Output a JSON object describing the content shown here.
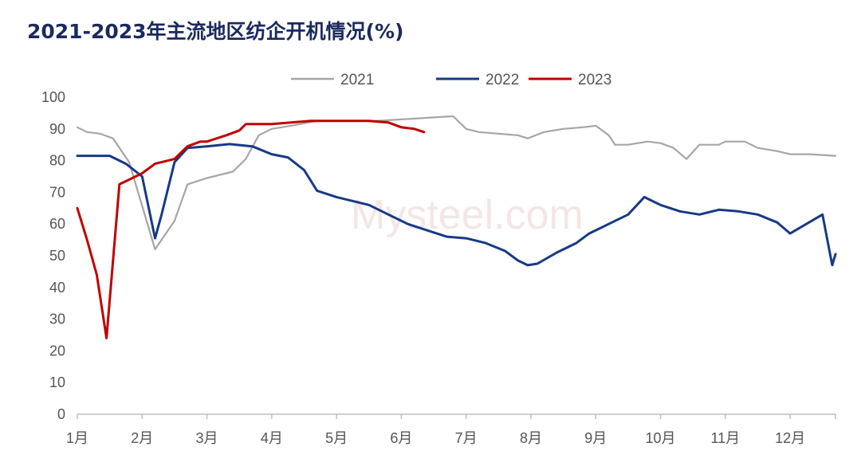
{
  "chart_data": {
    "type": "line",
    "title": "2021-2023年主流地区纺企开机情况(%)",
    "xlabel": "",
    "ylabel": "",
    "ylim": [
      0,
      100
    ],
    "yticks": [
      0,
      10,
      20,
      30,
      40,
      50,
      60,
      70,
      80,
      90,
      100
    ],
    "xlim": [
      1,
      12.7
    ],
    "month_labels": [
      "1月",
      "2月",
      "3月",
      "4月",
      "5月",
      "6月",
      "7月",
      "8月",
      "9月",
      "10月",
      "11月",
      "12月"
    ],
    "legend_position": "top-center",
    "watermark": "Mysteel.com",
    "series": [
      {
        "name": "2021",
        "color": "#a6a6a6",
        "points": [
          [
            1.0,
            90.5
          ],
          [
            1.15,
            89
          ],
          [
            1.35,
            88.5
          ],
          [
            1.55,
            87
          ],
          [
            1.8,
            79.5
          ],
          [
            2.2,
            52
          ],
          [
            2.5,
            61
          ],
          [
            2.7,
            72.5
          ],
          [
            3.0,
            74.5
          ],
          [
            3.4,
            76.5
          ],
          [
            3.6,
            80.5
          ],
          [
            3.8,
            88
          ],
          [
            4.0,
            90
          ],
          [
            4.3,
            91
          ],
          [
            4.7,
            92.5
          ],
          [
            5.2,
            92.5
          ],
          [
            5.6,
            92.5
          ],
          [
            6.0,
            93
          ],
          [
            6.4,
            93.5
          ],
          [
            6.8,
            94
          ],
          [
            7.0,
            90
          ],
          [
            7.2,
            89
          ],
          [
            7.5,
            88.5
          ],
          [
            7.8,
            88
          ],
          [
            7.95,
            87
          ],
          [
            8.2,
            89
          ],
          [
            8.5,
            90
          ],
          [
            8.8,
            90.5
          ],
          [
            9.0,
            91
          ],
          [
            9.2,
            88
          ],
          [
            9.3,
            85
          ],
          [
            9.5,
            85
          ],
          [
            9.8,
            86
          ],
          [
            10.0,
            85.5
          ],
          [
            10.2,
            84
          ],
          [
            10.4,
            80.5
          ],
          [
            10.6,
            85
          ],
          [
            10.9,
            85
          ],
          [
            11.0,
            86
          ],
          [
            11.3,
            86
          ],
          [
            11.5,
            84
          ],
          [
            11.8,
            83
          ],
          [
            12.0,
            82
          ],
          [
            12.3,
            82
          ],
          [
            12.7,
            81.5
          ]
        ]
      },
      {
        "name": "2022",
        "color": "#173a86",
        "points": [
          [
            1.0,
            81.5
          ],
          [
            1.5,
            81.5
          ],
          [
            1.75,
            79
          ],
          [
            2.0,
            75
          ],
          [
            2.2,
            55.5
          ],
          [
            2.3,
            63
          ],
          [
            2.5,
            79.5
          ],
          [
            2.7,
            84
          ],
          [
            3.0,
            84.5
          ],
          [
            3.35,
            85.2
          ],
          [
            3.7,
            84.5
          ],
          [
            4.0,
            82
          ],
          [
            4.25,
            81
          ],
          [
            4.5,
            77
          ],
          [
            4.7,
            70.5
          ],
          [
            5.0,
            68.5
          ],
          [
            5.5,
            66
          ],
          [
            5.8,
            63
          ],
          [
            6.1,
            60
          ],
          [
            6.4,
            58
          ],
          [
            6.7,
            56
          ],
          [
            7.0,
            55.5
          ],
          [
            7.3,
            54
          ],
          [
            7.6,
            51.5
          ],
          [
            7.8,
            48.5
          ],
          [
            7.95,
            47
          ],
          [
            8.1,
            47.5
          ],
          [
            8.4,
            51
          ],
          [
            8.7,
            54
          ],
          [
            8.9,
            57
          ],
          [
            9.2,
            60
          ],
          [
            9.5,
            63
          ],
          [
            9.75,
            68.5
          ],
          [
            10.0,
            66
          ],
          [
            10.3,
            64
          ],
          [
            10.6,
            63
          ],
          [
            10.9,
            64.5
          ],
          [
            11.2,
            64
          ],
          [
            11.5,
            63
          ],
          [
            11.8,
            60.5
          ],
          [
            12.0,
            57
          ],
          [
            12.25,
            60
          ],
          [
            12.5,
            63
          ],
          [
            12.65,
            47
          ],
          [
            12.7,
            50.5
          ]
        ]
      },
      {
        "name": "2023",
        "color": "#c00000",
        "points": [
          [
            1.0,
            65
          ],
          [
            1.15,
            55
          ],
          [
            1.3,
            44
          ],
          [
            1.45,
            24
          ],
          [
            1.65,
            72.5
          ],
          [
            1.8,
            74
          ],
          [
            2.0,
            76
          ],
          [
            2.2,
            79
          ],
          [
            2.5,
            80.5
          ],
          [
            2.7,
            84.5
          ],
          [
            2.9,
            86
          ],
          [
            3.0,
            86
          ],
          [
            3.3,
            88
          ],
          [
            3.5,
            89.5
          ],
          [
            3.6,
            91.5
          ],
          [
            4.0,
            91.5
          ],
          [
            4.3,
            92
          ],
          [
            4.6,
            92.5
          ],
          [
            5.0,
            92.5
          ],
          [
            5.5,
            92.5
          ],
          [
            5.8,
            92
          ],
          [
            6.0,
            90.5
          ],
          [
            6.2,
            90
          ],
          [
            6.35,
            89
          ]
        ]
      }
    ]
  }
}
